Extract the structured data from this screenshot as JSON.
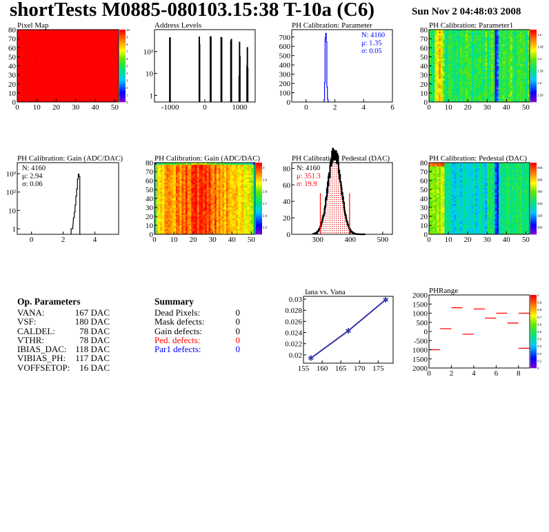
{
  "header": {
    "title": "shortTests M0885-080103.15:38 T-10a (C6)",
    "date": "Sun Nov  2 04:48:03 2008"
  },
  "colors": {
    "blue": "#0000ff",
    "red": "#ff0000",
    "graph": "#3333aa"
  },
  "chart_data": [
    {
      "id": "pixel-map",
      "type": "heatmap",
      "title": "Pixel Map",
      "xlim": [
        0,
        52
      ],
      "ylim": [
        0,
        80
      ],
      "xticks": [
        0,
        10,
        20,
        30,
        40,
        50
      ],
      "yticks": [
        0,
        10,
        20,
        30,
        40,
        50,
        60,
        70,
        80
      ],
      "zlim": [
        0,
        10
      ],
      "zticks": [
        0,
        1,
        2,
        3,
        4,
        5,
        6,
        7,
        8,
        9,
        10
      ],
      "uniform_value": 10
    },
    {
      "id": "address-levels",
      "type": "bar",
      "title": "Address Levels",
      "log_y": true,
      "xlim": [
        -1450,
        1450
      ],
      "ylim": [
        0.5,
        1000
      ],
      "xticks": [
        -1000,
        0,
        1000
      ],
      "yticks": [
        {
          "v": 1,
          "l": "1"
        },
        {
          "v": 10,
          "l": "10"
        },
        {
          "v": 100,
          "l": "10²"
        }
      ],
      "bins": [
        [
          -1010,
          420
        ],
        [
          -1000,
          450
        ],
        [
          -160,
          480
        ],
        [
          -150,
          220
        ],
        [
          160,
          500
        ],
        [
          175,
          480
        ],
        [
          470,
          460
        ],
        [
          485,
          450
        ],
        [
          750,
          320
        ],
        [
          765,
          380
        ],
        [
          0,
          0.7
        ],
        [
          990,
          8
        ],
        [
          1000,
          280
        ],
        [
          1010,
          65
        ],
        [
          1015,
          0.7
        ],
        [
          1215,
          22
        ],
        [
          1225,
          160
        ],
        [
          1235,
          18
        ]
      ]
    },
    {
      "id": "ph-parameter",
      "type": "bar",
      "title": "PH Calibration: Parameter",
      "xlim": [
        -1,
        6
      ],
      "ylim": [
        0,
        780
      ],
      "xticks": [
        0,
        2,
        4,
        6
      ],
      "yticks": [
        0,
        100,
        200,
        300,
        400,
        500,
        600,
        700
      ],
      "color": "#0000ff",
      "bin_width": 0.04,
      "bins": [
        [
          1.24,
          20
        ],
        [
          1.28,
          210
        ],
        [
          1.32,
          690
        ],
        [
          1.36,
          740
        ],
        [
          1.4,
          650
        ],
        [
          1.44,
          160
        ],
        [
          1.48,
          30
        ],
        [
          1.52,
          5
        ]
      ],
      "stats": [
        "N: 4160",
        "μ: 1.35",
        "σ: 0.05"
      ]
    },
    {
      "id": "ph-parameter1",
      "type": "heatmap",
      "title": "PH Calibration: Parameter1",
      "xlim": [
        0,
        52
      ],
      "ylim": [
        0,
        80
      ],
      "xticks": [
        0,
        10,
        20,
        30,
        40,
        50
      ],
      "yticks": [
        0,
        10,
        20,
        30,
        40,
        50,
        60,
        70,
        80
      ],
      "zlim": [
        1.22,
        1.52
      ],
      "zticks": [
        "1.25",
        "1.3",
        "1.35",
        "1.4",
        "1.45",
        "1.5"
      ]
    },
    {
      "id": "gain-hist",
      "type": "bar",
      "title": "PH Calibration: Gain (ADC/DAC)",
      "log_y": true,
      "xlim": [
        -0.9,
        5.5
      ],
      "ylim": [
        0.5,
        4000
      ],
      "xticks": [
        0,
        2,
        4
      ],
      "yticks": [
        {
          "v": 1,
          "l": "1"
        },
        {
          "v": 10,
          "l": "10"
        },
        {
          "v": 100,
          "l": "10²"
        },
        {
          "v": 1000,
          "l": "10³"
        }
      ],
      "bin_width": 0.05,
      "bins": [
        [
          2.5,
          1
        ],
        [
          2.55,
          1
        ],
        [
          2.65,
          4
        ],
        [
          2.7,
          8
        ],
        [
          2.75,
          20
        ],
        [
          2.8,
          60
        ],
        [
          2.85,
          150
        ],
        [
          2.9,
          500
        ],
        [
          2.95,
          950
        ],
        [
          3.0,
          700
        ],
        [
          3.05,
          0.5
        ]
      ],
      "stats": [
        "N: 4160",
        "μ: 2.94",
        "σ: 0.06"
      ]
    },
    {
      "id": "gain-map",
      "type": "heatmap",
      "title": "PH Calibration: Gain (ADC/DAC)",
      "xlim": [
        0,
        52
      ],
      "ylim": [
        0,
        80
      ],
      "xticks": [
        0,
        10,
        20,
        30,
        40,
        50
      ],
      "yticks": [
        0,
        10,
        20,
        30,
        40,
        50,
        60,
        70,
        80
      ],
      "zlim": [
        2.42,
        3.05
      ],
      "zticks": [
        "2.5",
        "2.6",
        "2.7",
        "2.8",
        "2.9",
        "3"
      ]
    },
    {
      "id": "pedestal-hist",
      "type": "bar",
      "title": "PH Calibration: Pedestal (DAC)",
      "xlim": [
        220,
        530
      ],
      "ylim": [
        0,
        87
      ],
      "xticks": [
        300,
        400,
        500
      ],
      "yticks": [
        0,
        20,
        40,
        60,
        80
      ],
      "mean": 351.3,
      "sigma": 19.9,
      "entries": 4160,
      "cut_lines": [
        308,
        398
      ],
      "cut_height": 50,
      "stats": [
        "N: 4160",
        "μ: 351.3",
        "σ: 19.9"
      ]
    },
    {
      "id": "pedestal-map",
      "type": "heatmap",
      "title": "PH Calibration: Pedestal (DAC)",
      "xlim": [
        0,
        52
      ],
      "ylim": [
        0,
        80
      ],
      "xticks": [
        0,
        10,
        20,
        30,
        40,
        50
      ],
      "yticks": [
        0,
        10,
        20,
        30,
        40,
        50,
        60,
        70,
        80
      ],
      "zlim": [
        290,
        420
      ],
      "zticks": [
        "300",
        "320",
        "340",
        "360",
        "380",
        "400"
      ]
    },
    {
      "id": "iana-vs-vana",
      "type": "line",
      "title": "Iana vs. Vana",
      "xlim": [
        155,
        179
      ],
      "ylim": [
        0.0185,
        0.0305
      ],
      "xticks": [
        155,
        160,
        165,
        170,
        175
      ],
      "yticks": [
        {
          "v": 0.02,
          "l": "0.02"
        },
        {
          "v": 0.022,
          "l": "0.022"
        },
        {
          "v": 0.024,
          "l": "0.024"
        },
        {
          "v": 0.026,
          "l": "0.026"
        },
        {
          "v": 0.028,
          "l": "0.028"
        },
        {
          "v": 0.03,
          "l": "0.03"
        }
      ],
      "points": [
        [
          157,
          0.0194
        ],
        [
          167,
          0.0243
        ],
        [
          177,
          0.0299
        ]
      ]
    },
    {
      "id": "ph-range",
      "type": "heatmap",
      "title": "PHRange",
      "xlim": [
        0,
        9
      ],
      "ylim": [
        -2000,
        2000
      ],
      "xticks": [
        0,
        2,
        4,
        6,
        8
      ],
      "yticks": [
        {
          "v": 2000,
          "l": "2000"
        },
        {
          "v": 1500,
          "l": "1500"
        },
        {
          "v": 1000,
          "l": "1000"
        },
        {
          "v": 500,
          "l": "500"
        },
        {
          "v": 0,
          "l": "0"
        },
        {
          "v": -500,
          "l": "-500"
        },
        {
          "v": -1000,
          "l": "1000"
        },
        {
          "v": -1500,
          "l": "1500"
        },
        {
          "v": -2000,
          "l": "2000"
        }
      ],
      "zlim": [
        0,
        1
      ],
      "zticks": [
        "0",
        "0.1",
        "0.2",
        "0.3",
        "0.4",
        "0.5",
        "0.6",
        "0.7",
        "0.8",
        "0.9",
        "1"
      ],
      "segments": [
        [
          0,
          -1000
        ],
        [
          1,
          150
        ],
        [
          2,
          1300
        ],
        [
          3,
          -150
        ],
        [
          4,
          1230
        ],
        [
          5,
          730
        ],
        [
          6,
          1000
        ],
        [
          7,
          460
        ],
        [
          8,
          1000
        ],
        [
          8,
          -920
        ]
      ]
    }
  ],
  "op_parameters": {
    "heading": "Op. Parameters",
    "rows": [
      [
        "VANA:",
        "167 DAC"
      ],
      [
        "VSF:",
        "180 DAC"
      ],
      [
        "CALDEL:",
        "78 DAC"
      ],
      [
        "VTHR:",
        "78 DAC"
      ],
      [
        "IBIAS_DAC:",
        "118 DAC"
      ],
      [
        "VIBIAS_PH:",
        "117 DAC"
      ],
      [
        "VOFFSETOP:",
        "16 DAC"
      ]
    ]
  },
  "summary": {
    "heading": "Summary",
    "rows": [
      {
        "label": "Dead Pixels:",
        "value": "0",
        "color": "#000000"
      },
      {
        "label": "Mask defects:",
        "value": "0",
        "color": "#000000"
      },
      {
        "label": "Gain defects:",
        "value": "0",
        "color": "#000000"
      },
      {
        "label": "Ped. defects:",
        "value": "0",
        "color": "#ff0000"
      },
      {
        "label": "Par1 defects:",
        "value": "0",
        "color": "#0000ff"
      }
    ]
  }
}
